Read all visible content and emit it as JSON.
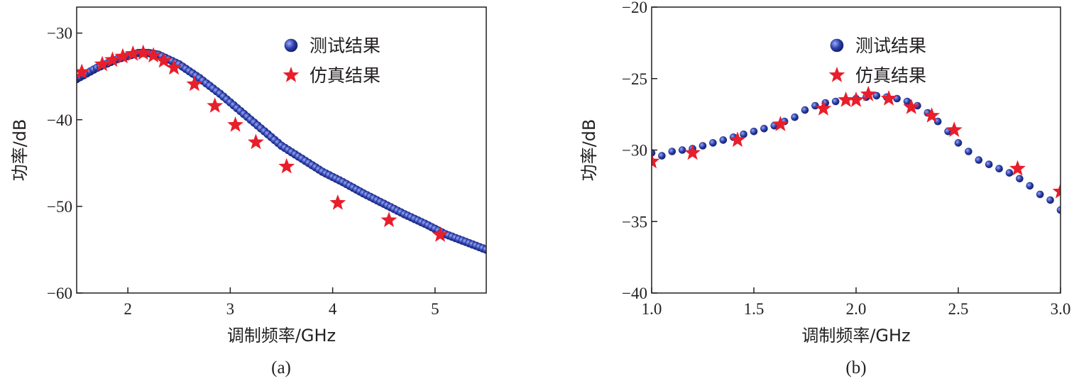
{
  "chart_data": [
    {
      "type": "scatter",
      "caption": "(a)",
      "xlabel": "调制频率/GHz",
      "ylabel": "功率/dB",
      "xlim": [
        1.5,
        5.5
      ],
      "ylim": [
        -60,
        -27
      ],
      "xticks": [
        2,
        3,
        4,
        5
      ],
      "xtick_labels": [
        "2",
        "3",
        "4",
        "5"
      ],
      "yticks": [
        -60,
        -50,
        -40,
        -30
      ],
      "ytick_labels": [
        "−60",
        "−50",
        "−40",
        "−30"
      ],
      "legend": {
        "position": "top-right",
        "measured_label": "测试结果",
        "simulated_label": "仿真结果"
      },
      "series": [
        {
          "name": "测试结果",
          "marker": "circle",
          "color": "#2b3fa8",
          "x": [
            1.5,
            1.7,
            1.9,
            2.1,
            2.2,
            2.3,
            2.5,
            2.7,
            2.9,
            3.1,
            3.3,
            3.5,
            3.7,
            3.9,
            4.1,
            4.3,
            4.5,
            4.7,
            4.9,
            5.1,
            5.3,
            5.5
          ],
          "y": [
            -35.3,
            -34.0,
            -33.0,
            -32.3,
            -32.3,
            -32.5,
            -33.6,
            -35.2,
            -37.0,
            -39.0,
            -41.0,
            -43.0,
            -44.5,
            -46.0,
            -47.2,
            -48.5,
            -49.7,
            -50.9,
            -52.0,
            -53.2,
            -54.1,
            -55.0
          ]
        },
        {
          "name": "仿真结果",
          "marker": "star",
          "color": "#e81e2b",
          "x": [
            1.55,
            1.75,
            1.85,
            1.95,
            2.05,
            2.15,
            2.25,
            2.35,
            2.45,
            2.65,
            2.85,
            3.05,
            3.25,
            3.55,
            4.05,
            4.55,
            5.05
          ],
          "y": [
            -34.5,
            -33.6,
            -33.1,
            -32.7,
            -32.4,
            -32.3,
            -32.6,
            -33.2,
            -34.0,
            -35.9,
            -38.4,
            -40.6,
            -42.6,
            -45.4,
            -49.6,
            -51.6,
            -53.3
          ]
        }
      ]
    },
    {
      "type": "scatter",
      "caption": "(b)",
      "xlabel": "调制频率/GHz",
      "ylabel": "功率/dB",
      "xlim": [
        1.0,
        3.0
      ],
      "ylim": [
        -40,
        -20
      ],
      "xticks": [
        1.0,
        1.5,
        2.0,
        2.5,
        3.0
      ],
      "xtick_labels": [
        "1.0",
        "1.5",
        "2.0",
        "2.5",
        "3.0"
      ],
      "yticks": [
        -40,
        -35,
        -30,
        -25,
        -20
      ],
      "ytick_labels": [
        "−40",
        "−35",
        "−30",
        "−25",
        "−20"
      ],
      "legend": {
        "position": "top-right",
        "measured_label": "测试结果",
        "simulated_label": "仿真结果"
      },
      "series": [
        {
          "name": "测试结果",
          "marker": "circle",
          "color": "#2b3fa8",
          "x": [
            1.0,
            1.05,
            1.1,
            1.15,
            1.2,
            1.25,
            1.3,
            1.35,
            1.4,
            1.45,
            1.5,
            1.55,
            1.6,
            1.65,
            1.7,
            1.75,
            1.8,
            1.85,
            1.9,
            1.95,
            2.0,
            2.05,
            2.1,
            2.15,
            2.2,
            2.25,
            2.3,
            2.35,
            2.4,
            2.45,
            2.5,
            2.55,
            2.6,
            2.65,
            2.7,
            2.75,
            2.8,
            2.85,
            2.9,
            2.95,
            3.0
          ],
          "y": [
            -30.2,
            -30.4,
            -30.1,
            -30.0,
            -29.9,
            -29.7,
            -29.5,
            -29.3,
            -29.1,
            -28.9,
            -28.7,
            -28.5,
            -28.3,
            -28.0,
            -27.7,
            -27.2,
            -26.9,
            -26.7,
            -26.6,
            -26.5,
            -26.4,
            -26.3,
            -26.2,
            -26.3,
            -26.4,
            -26.6,
            -26.9,
            -27.4,
            -28.0,
            -28.7,
            -29.5,
            -30.1,
            -30.7,
            -31.0,
            -31.3,
            -31.6,
            -32.0,
            -32.5,
            -33.1,
            -33.5,
            -34.2
          ]
        },
        {
          "name": "仿真结果",
          "marker": "star",
          "color": "#e81e2b",
          "x": [
            1.0,
            1.2,
            1.42,
            1.63,
            1.84,
            1.95,
            2.0,
            2.06,
            2.16,
            2.27,
            2.37,
            2.48,
            2.79,
            3.0
          ],
          "y": [
            -30.8,
            -30.2,
            -29.3,
            -28.2,
            -27.1,
            -26.5,
            -26.5,
            -26.1,
            -26.4,
            -27.0,
            -27.6,
            -28.6,
            -31.3,
            -32.9
          ]
        }
      ]
    }
  ]
}
